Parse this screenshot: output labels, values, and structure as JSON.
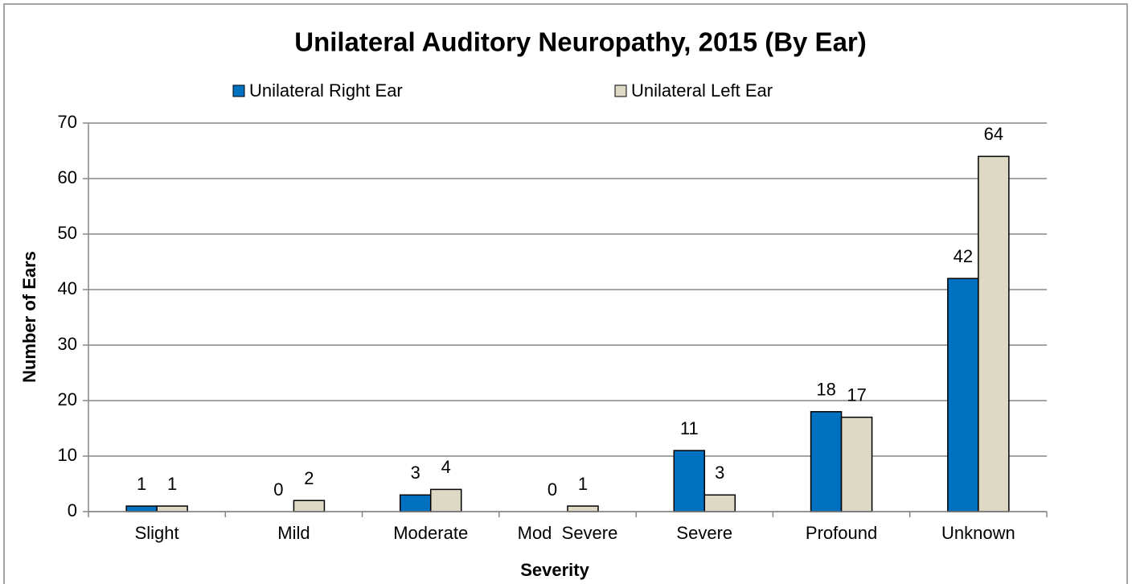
{
  "chart_data": {
    "type": "bar",
    "title": "Unilateral Auditory Neuropathy, 2015 (By Ear)",
    "x_label": "Severity",
    "y_label": "Number of Ears",
    "categories": [
      "Slight",
      "Mild",
      "Moderate",
      "Mod  Severe",
      "Severe",
      "Profound",
      "Unknown"
    ],
    "series": [
      {
        "name": "Unilateral Right Ear",
        "color": "#0070c0",
        "values": [
          1,
          0,
          3,
          0,
          11,
          18,
          42
        ]
      },
      {
        "name": "Unilateral Left Ear",
        "color": "#ddd9c4",
        "values": [
          1,
          2,
          4,
          1,
          3,
          17,
          64
        ]
      }
    ],
    "ylim": [
      0,
      70
    ],
    "yticks": [
      0,
      10,
      20,
      30,
      40,
      50,
      60,
      70
    ],
    "grid": true,
    "legend": "top"
  }
}
